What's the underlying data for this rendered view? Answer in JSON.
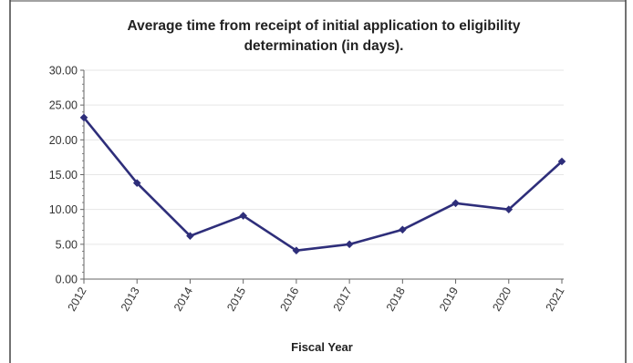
{
  "chart_data": {
    "type": "line",
    "title_lines": [
      "Average time from receipt of initial application to eligibility",
      "determination (in days)."
    ],
    "xlabel": "Fiscal Year",
    "ylabel": "",
    "categories": [
      "2012",
      "2013",
      "2014",
      "2015",
      "2016",
      "2017",
      "2018",
      "2019",
      "2020",
      "2021"
    ],
    "series": [
      {
        "values": [
          23.2,
          13.8,
          6.2,
          9.1,
          4.1,
          5.0,
          7.1,
          10.9,
          10.0,
          16.9
        ]
      }
    ],
    "ylim": [
      0,
      30
    ],
    "yticks": [
      "0.00",
      "5.00",
      "10.00",
      "15.00",
      "20.00",
      "25.00",
      "30.00"
    ],
    "grid": true,
    "legend": "none",
    "colors": {
      "line": "#2e2e7a",
      "grid": "#e6e6e6",
      "axis": "#666666",
      "frame": "#444444"
    }
  }
}
